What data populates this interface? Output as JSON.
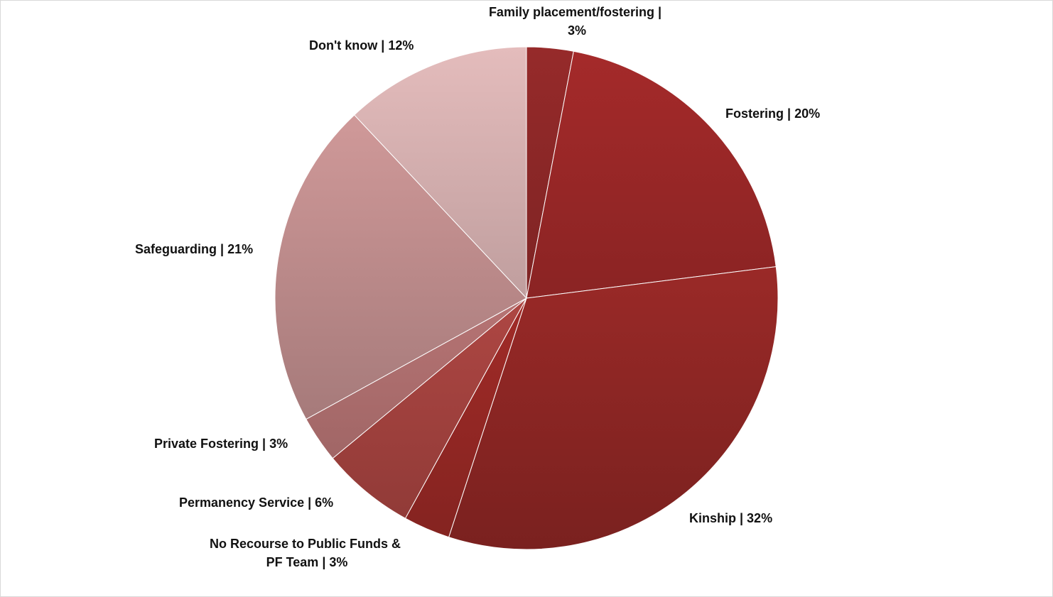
{
  "chart_data": {
    "type": "pie",
    "start_angle_deg": 0,
    "direction": "clockwise",
    "slices": [
      {
        "label": "Family placement/fostering",
        "value": 3,
        "label_text": "3%",
        "color": "#962a2a"
      },
      {
        "label": "Fostering",
        "value": 20,
        "label_text": "20%",
        "color": "#a52a2a"
      },
      {
        "label": "Kinship",
        "value": 32,
        "label_text": "32%",
        "color": "#b3302e"
      },
      {
        "label": "No Recourse to Public Funds & PF Team",
        "value": 3,
        "label_text": "3%",
        "color": "#c0332f"
      },
      {
        "label": "Permanency Service",
        "value": 6,
        "label_text": "6%",
        "color": "#cf5450"
      },
      {
        "label": "Private Fostering",
        "value": 3,
        "label_text": "3%",
        "color": "#d98a8a"
      },
      {
        "label": "Safeguarding",
        "value": 21,
        "label_text": "21%",
        "color": "#d9a0a0"
      },
      {
        "label": "Don't know",
        "value": 12,
        "label_text": "12%",
        "color": "#e4bcbc"
      }
    ]
  }
}
